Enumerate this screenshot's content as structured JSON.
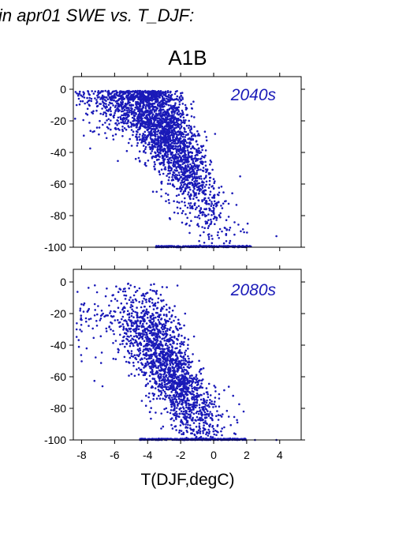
{
  "header": "in apr01 SWE vs. T_DJF:",
  "chart_data": [
    {
      "type": "scatter",
      "title": "A1B",
      "annotation": "2040s",
      "xlabel": "",
      "ylabel": "",
      "xlim": [
        -8.5,
        5.3
      ],
      "ylim": [
        -100,
        8
      ],
      "xticks": [
        "-8",
        "-6",
        "-4",
        "-2",
        "0",
        "2",
        "4"
      ],
      "yticks": [
        "0",
        "-20",
        "-40",
        "-60",
        "-80",
        "-100"
      ],
      "marker_color": "#1a1ab8",
      "cloud": {
        "n": 2600,
        "seed": 11,
        "x_range": [
          -8.4,
          3.8
        ],
        "trend": "swe = -100 * (1 - f(T)); spread concentrated between -6 and 0 degC, floor cluster at -100"
      },
      "points": [
        {
          "x": -8.3,
          "y": -10
        },
        {
          "x": -7.8,
          "y": -9
        },
        {
          "x": -7.4,
          "y": -6
        },
        {
          "x": -7.0,
          "y": -2
        },
        {
          "x": -6.6,
          "y": -5
        },
        {
          "x": -6.0,
          "y": -3
        },
        {
          "x": -5.5,
          "y": -8
        },
        {
          "x": -5.0,
          "y": -10
        },
        {
          "x": -4.5,
          "y": -14
        },
        {
          "x": -4.0,
          "y": -20
        },
        {
          "x": -3.5,
          "y": -25
        },
        {
          "x": -3.0,
          "y": -32
        },
        {
          "x": -2.5,
          "y": -40
        },
        {
          "x": -2.0,
          "y": -48
        },
        {
          "x": -1.5,
          "y": -55
        },
        {
          "x": -1.0,
          "y": -62
        },
        {
          "x": -0.5,
          "y": -72
        },
        {
          "x": 0.0,
          "y": -82
        },
        {
          "x": 0.5,
          "y": -90
        },
        {
          "x": 1.0,
          "y": -96
        },
        {
          "x": 2.0,
          "y": -99
        },
        {
          "x": 3.8,
          "y": -93
        }
      ]
    },
    {
      "type": "scatter",
      "title": "",
      "annotation": "2080s",
      "xlabel": "T(DJF,degC)",
      "ylabel": "",
      "xlim": [
        -8.5,
        5.3
      ],
      "ylim": [
        -100,
        8
      ],
      "xticks": [
        "-8",
        "-6",
        "-4",
        "-2",
        "0",
        "2",
        "4"
      ],
      "yticks": [
        "0",
        "-20",
        "-40",
        "-60",
        "-80",
        "-100"
      ],
      "marker_color": "#1a1ab8",
      "cloud": {
        "n": 1900,
        "seed": 29,
        "x_range": [
          -8.3,
          3.9
        ],
        "trend": "drier than 2040s; dense band between -5 and -1 degC, floor cluster at -100"
      },
      "points": [
        {
          "x": -8.3,
          "y": -30
        },
        {
          "x": -8.0,
          "y": -24
        },
        {
          "x": -7.6,
          "y": -18
        },
        {
          "x": -7.2,
          "y": -14
        },
        {
          "x": -6.7,
          "y": -20
        },
        {
          "x": -6.2,
          "y": -12
        },
        {
          "x": -5.5,
          "y": -22
        },
        {
          "x": -5.0,
          "y": -25
        },
        {
          "x": -4.5,
          "y": -28
        },
        {
          "x": -4.0,
          "y": -35
        },
        {
          "x": -3.5,
          "y": -42
        },
        {
          "x": -3.0,
          "y": -52
        },
        {
          "x": -2.5,
          "y": -60
        },
        {
          "x": -2.0,
          "y": -68
        },
        {
          "x": -1.5,
          "y": -75
        },
        {
          "x": -1.0,
          "y": -82
        },
        {
          "x": -0.5,
          "y": -88
        },
        {
          "x": 0.0,
          "y": -93
        },
        {
          "x": 0.5,
          "y": -97
        },
        {
          "x": 1.0,
          "y": -99
        },
        {
          "x": 2.5,
          "y": -100
        },
        {
          "x": 3.8,
          "y": -100
        }
      ]
    }
  ]
}
